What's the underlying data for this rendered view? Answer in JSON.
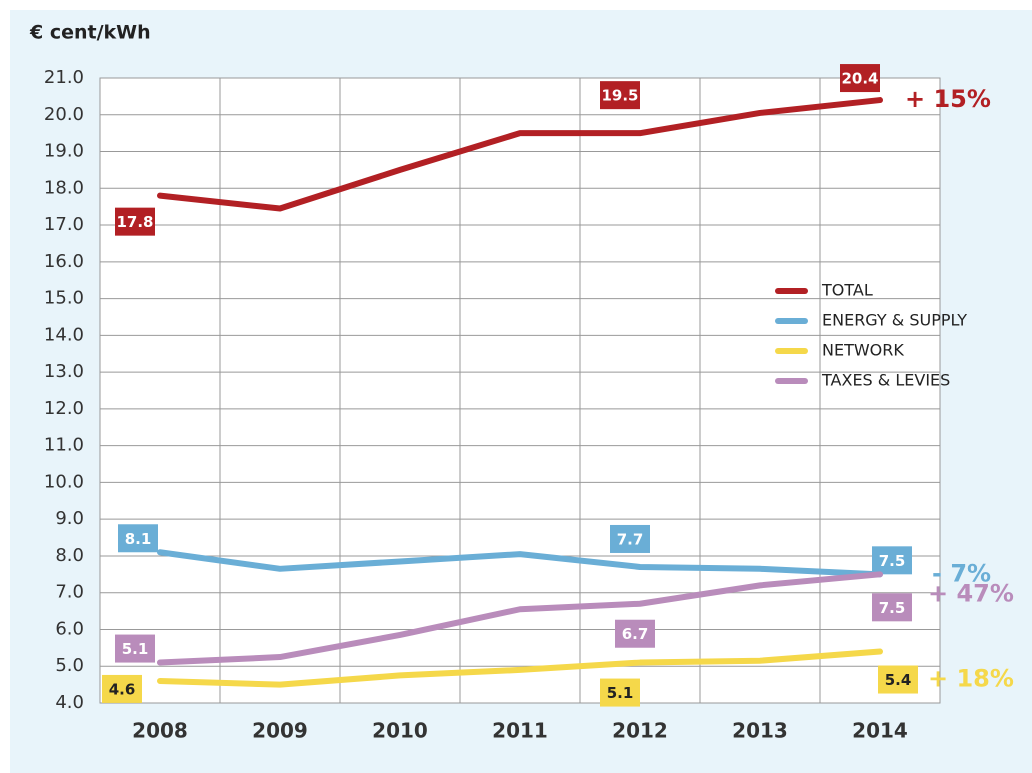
{
  "chart_data": {
    "type": "line",
    "y_label": "€ cent/kWh",
    "categories": [
      "2008",
      "2009",
      "2010",
      "2011",
      "2012",
      "2013",
      "2014"
    ],
    "ylim": [
      4,
      21
    ],
    "yticks": [
      {
        "value": 4,
        "label": "4.0"
      },
      {
        "value": 5,
        "label": "5.0"
      },
      {
        "value": 6,
        "label": "6.0"
      },
      {
        "value": 7,
        "label": "7.0"
      },
      {
        "value": 8,
        "label": "8.0"
      },
      {
        "value": 9,
        "label": "9.0"
      },
      {
        "value": 10,
        "label": "10.0"
      },
      {
        "value": 11,
        "label": "11.0"
      },
      {
        "value": 12,
        "label": "12.0"
      },
      {
        "value": 13,
        "label": "13.0"
      },
      {
        "value": 14,
        "label": "14.0"
      },
      {
        "value": 15,
        "label": "15.0"
      },
      {
        "value": 16,
        "label": "16.0"
      },
      {
        "value": 17,
        "label": "17.0"
      },
      {
        "value": 18,
        "label": "18.0"
      },
      {
        "value": 19,
        "label": "19.0"
      },
      {
        "value": 20,
        "label": "20.0"
      },
      {
        "value": 21,
        "label": "21.0"
      }
    ],
    "grid": true,
    "series": [
      {
        "name": "TOTAL",
        "color": "#b22024",
        "values": [
          17.8,
          17.45,
          18.5,
          19.5,
          19.5,
          20.05,
          20.4
        ],
        "value_labels": [
          "17.8",
          null,
          null,
          null,
          "19.5",
          null,
          "20.4"
        ],
        "change": "+ 15%"
      },
      {
        "name": "ENERGY & SUPPLY",
        "color": "#6aaed6",
        "values": [
          8.1,
          7.65,
          7.85,
          8.05,
          7.7,
          7.65,
          7.5
        ],
        "value_labels": [
          "8.1",
          null,
          null,
          null,
          "7.7",
          null,
          "7.5"
        ],
        "change": "- 7%"
      },
      {
        "name": "NETWORK",
        "color": "#f5d84a",
        "values": [
          4.6,
          4.5,
          4.75,
          4.9,
          5.1,
          5.15,
          5.4
        ],
        "value_labels": [
          "4.6",
          null,
          null,
          null,
          "5.1",
          null,
          "5.4"
        ],
        "change": "+ 18%"
      },
      {
        "name": "TAXES & LEVIES",
        "color": "#b98cbb",
        "values": [
          5.1,
          5.25,
          5.85,
          6.55,
          6.7,
          7.2,
          7.5
        ],
        "value_labels": [
          "5.1",
          null,
          null,
          null,
          "6.7",
          null,
          "7.5"
        ],
        "change": "+ 47%"
      }
    ]
  }
}
